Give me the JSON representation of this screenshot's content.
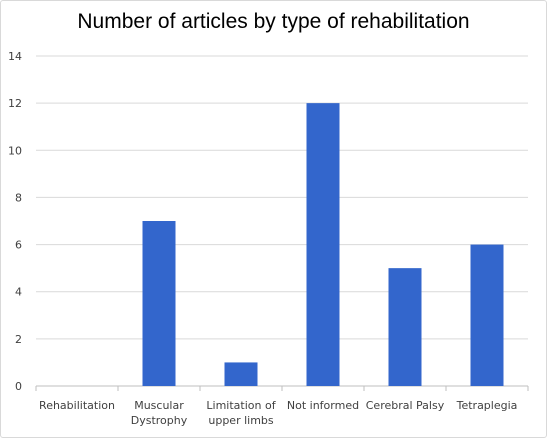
{
  "chart_data": {
    "type": "bar",
    "title": "Number of articles by type of rehabilitation",
    "categories": [
      [
        "Rehabilitation"
      ],
      [
        "Muscular",
        "Dystrophy"
      ],
      [
        "Limitation of",
        "upper limbs"
      ],
      [
        "Not informed"
      ],
      [
        "Cerebral Palsy"
      ],
      [
        "Tetraplegia"
      ]
    ],
    "values": [
      0,
      7,
      1,
      12,
      5,
      6
    ],
    "ylim": [
      0,
      14
    ],
    "yticks": [
      0,
      2,
      4,
      6,
      8,
      10,
      12,
      14
    ],
    "grid": true,
    "bar_color": "#3366cc",
    "grid_color": "#d9d9d9"
  }
}
